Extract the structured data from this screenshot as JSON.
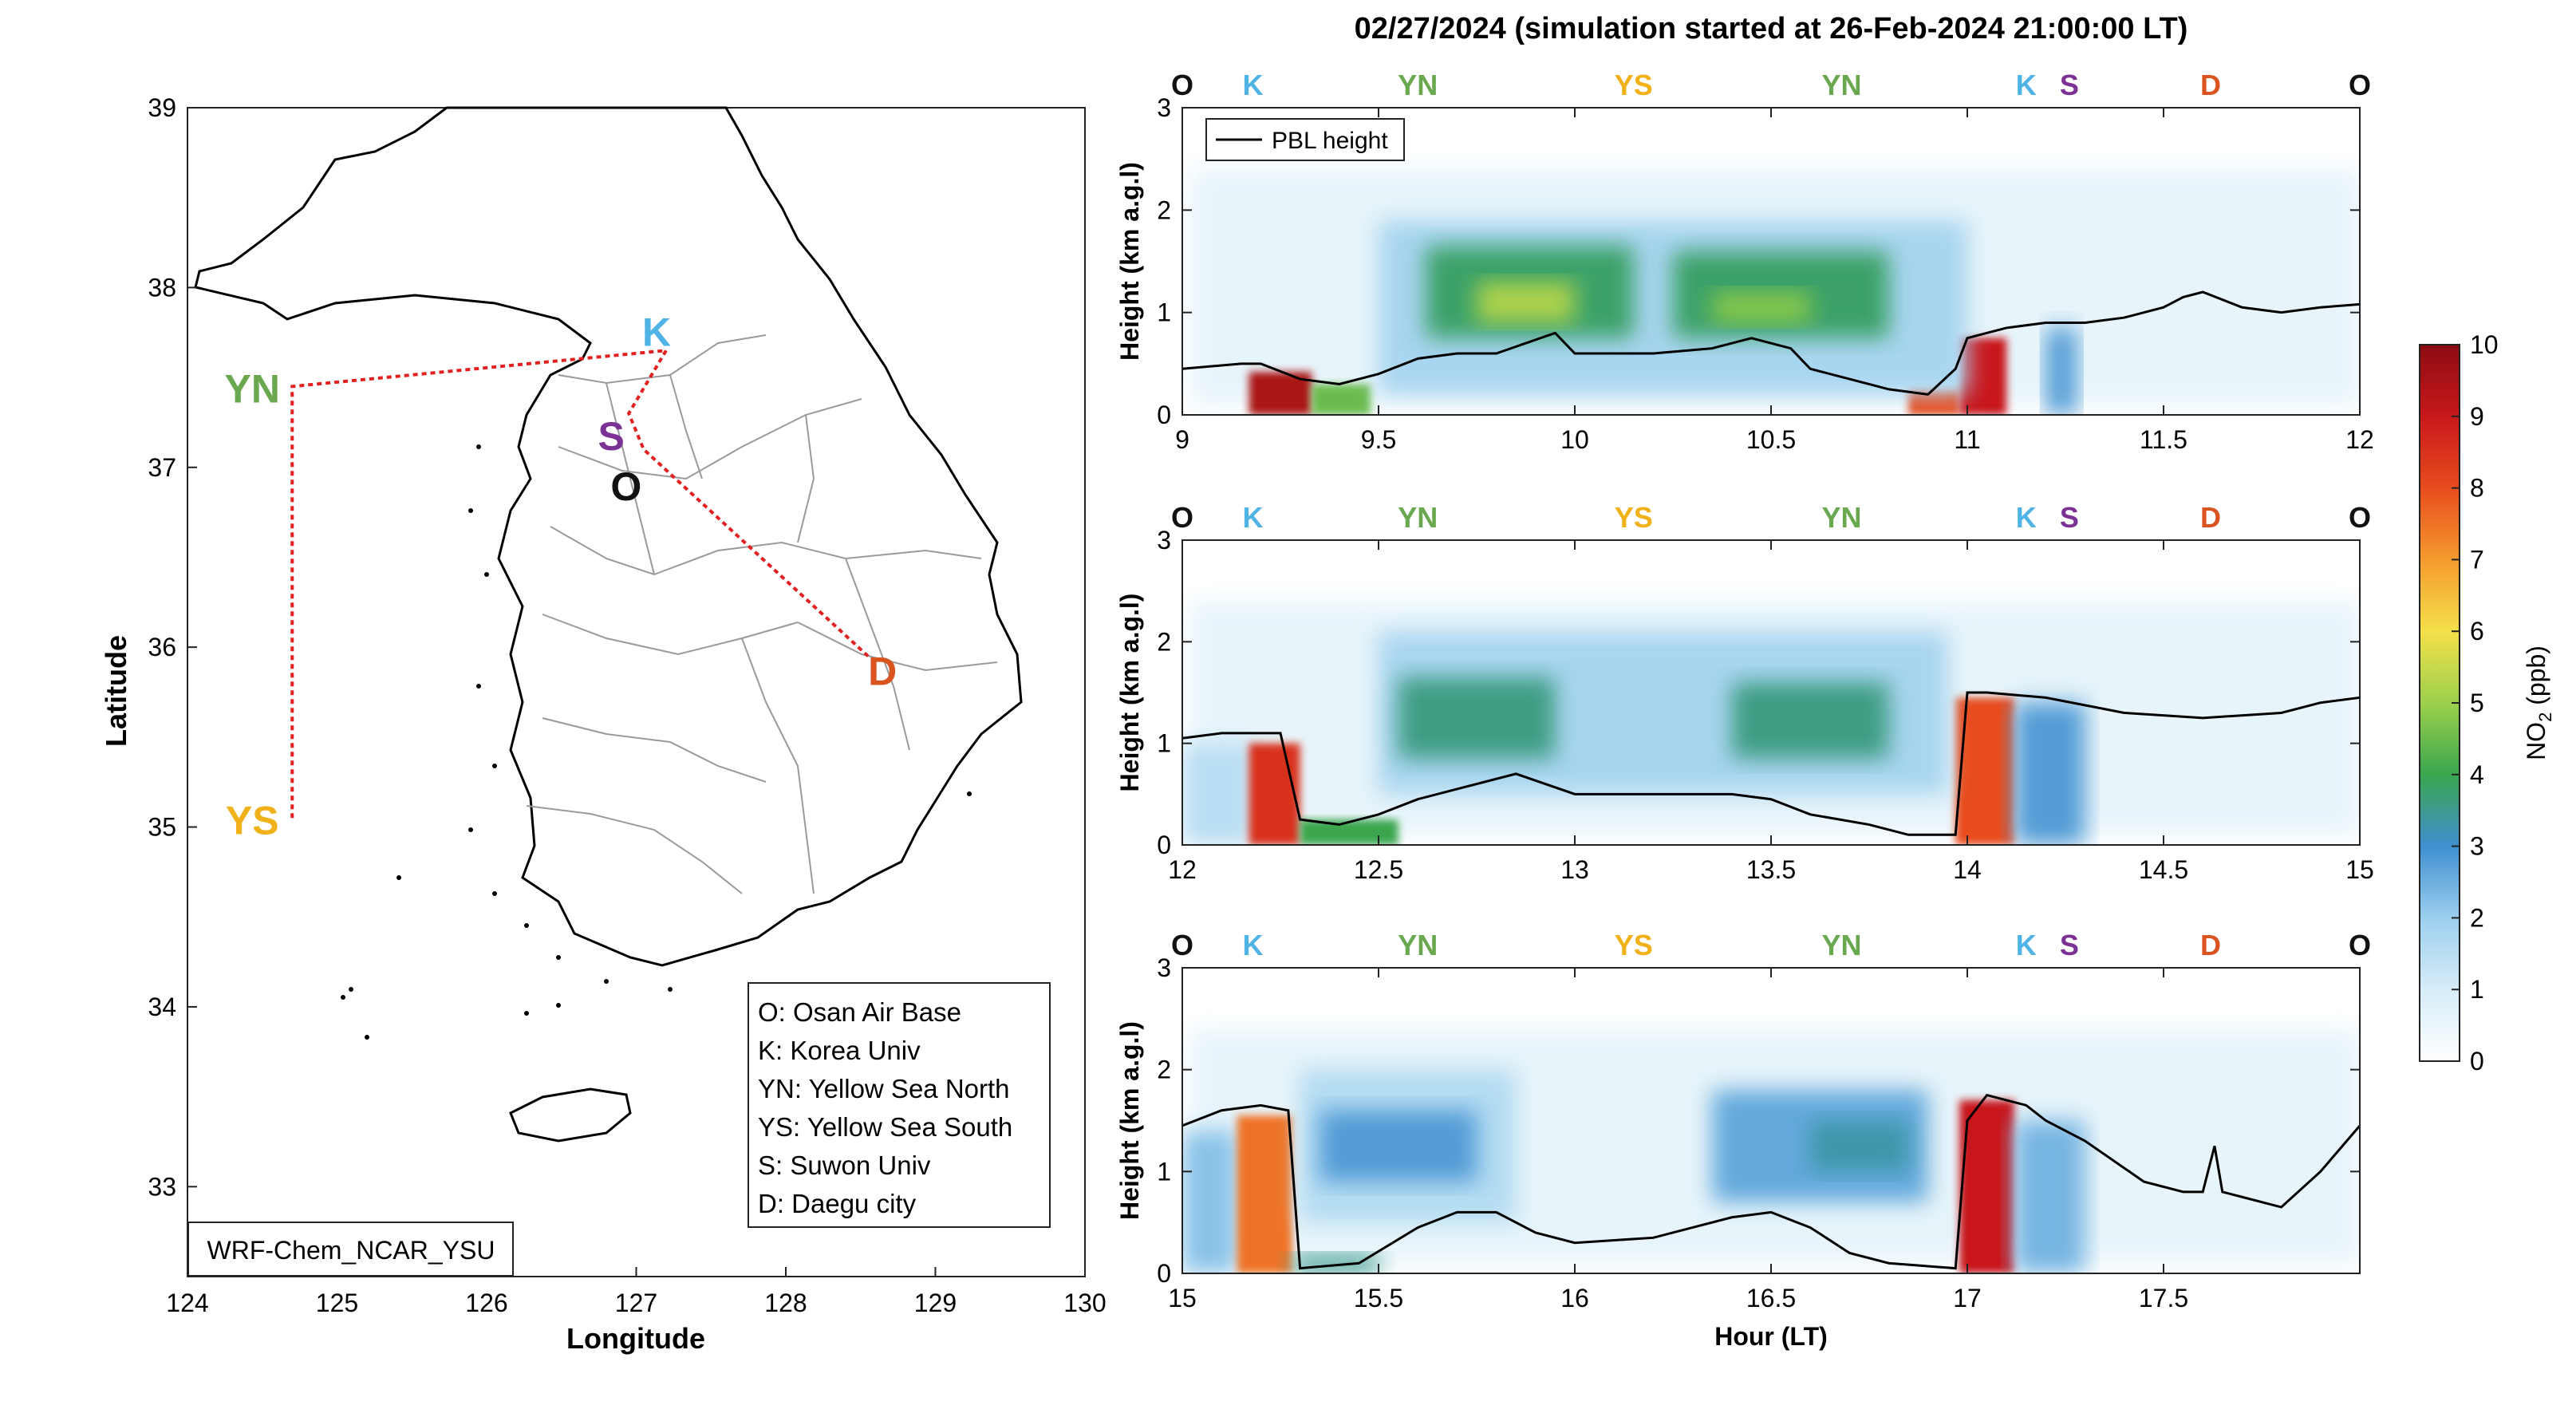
{
  "title": "02/27/2024 (simulation started at 26-Feb-2024 21:00:00 LT)",
  "map": {
    "xlabel": "Longitude",
    "ylabel": "Latitude",
    "x_ticks": [
      "124",
      "125",
      "126",
      "127",
      "128",
      "129",
      "130"
    ],
    "y_ticks": [
      "33",
      "34",
      "35",
      "36",
      "37",
      "38",
      "39"
    ],
    "xlim": [
      124,
      130
    ],
    "ylim": [
      32.5,
      39
    ],
    "model_label": "WRF-Chem_NCAR_YSU",
    "track_color": "#e32020",
    "stations": [
      {
        "code": "YN",
        "lon": 124.7,
        "lat": 37.45,
        "color": "#6aa84f"
      },
      {
        "code": "YS",
        "lon": 124.7,
        "lat": 35.05,
        "color": "#f1b11a"
      },
      {
        "code": "K",
        "lon": 127.2,
        "lat": 37.65,
        "color": "#4fb3e6"
      },
      {
        "code": "S",
        "lon": 126.95,
        "lat": 37.3,
        "color": "#7b3294"
      },
      {
        "code": "O",
        "lon": 127.05,
        "lat": 37.1,
        "color": "#111111"
      },
      {
        "code": "D",
        "lon": 128.55,
        "lat": 35.95,
        "color": "#d9541e"
      }
    ],
    "legend": [
      "O: Osan Air Base",
      "K: Korea Univ",
      "YN: Yellow Sea North",
      "YS: Yellow Sea South",
      "S: Suwon Univ",
      "D: Daegu city"
    ]
  },
  "chart_data": [
    {
      "type": "heatmap",
      "variable": "NO2 (ppb)",
      "ylabel": "Height (km a.g.l)",
      "xlim": [
        9,
        12
      ],
      "ylim": [
        0,
        3
      ],
      "x_ticks": [
        "9",
        "9.5",
        "10",
        "10.5",
        "11",
        "11.5",
        "12"
      ],
      "y_ticks": [
        "0",
        "1",
        "2",
        "3"
      ],
      "legend": [
        "PBL height"
      ],
      "top_labels": [
        {
          "code": "O",
          "x": 9.0
        },
        {
          "code": "K",
          "x": 9.18
        },
        {
          "code": "YN",
          "x": 9.6
        },
        {
          "code": "YS",
          "x": 10.15
        },
        {
          "code": "YN",
          "x": 10.68
        },
        {
          "code": "K",
          "x": 11.15
        },
        {
          "code": "S",
          "x": 11.26
        },
        {
          "code": "D",
          "x": 11.62
        },
        {
          "code": "O",
          "x": 12.0
        }
      ],
      "pbl": {
        "x": [
          9.0,
          9.15,
          9.2,
          9.3,
          9.4,
          9.5,
          9.6,
          9.7,
          9.8,
          9.95,
          10.0,
          10.2,
          10.35,
          10.45,
          10.55,
          10.6,
          10.7,
          10.8,
          10.9,
          10.97,
          11.0,
          11.05,
          11.1,
          11.2,
          11.3,
          11.4,
          11.5,
          11.55,
          11.6,
          11.7,
          11.8,
          11.9,
          12.0
        ],
        "y": [
          0.45,
          0.5,
          0.5,
          0.35,
          0.3,
          0.4,
          0.55,
          0.6,
          0.6,
          0.8,
          0.6,
          0.6,
          0.65,
          0.75,
          0.65,
          0.45,
          0.35,
          0.25,
          0.2,
          0.45,
          0.75,
          0.8,
          0.85,
          0.9,
          0.9,
          0.95,
          1.05,
          1.15,
          1.2,
          1.05,
          1.0,
          1.05,
          1.08
        ]
      },
      "blobs": [
        {
          "x0": 9.17,
          "x1": 9.33,
          "y0": 0.0,
          "y1": 0.42,
          "v": 9.5
        },
        {
          "x0": 9.33,
          "x1": 9.48,
          "y0": 0.0,
          "y1": 0.3,
          "v": 4.5
        },
        {
          "x0": 10.85,
          "x1": 10.98,
          "y0": 0.0,
          "y1": 0.25,
          "v": 8.0
        },
        {
          "x0": 10.98,
          "x1": 11.1,
          "y0": 0.0,
          "y1": 0.75,
          "v": 9.0
        },
        {
          "x0": 9.5,
          "x1": 11.0,
          "y0": 0.2,
          "y1": 1.9,
          "v": 1.8
        },
        {
          "x0": 9.62,
          "x1": 10.15,
          "y0": 0.75,
          "y1": 1.65,
          "v": 3.8
        },
        {
          "x0": 9.75,
          "x1": 10.0,
          "y0": 0.9,
          "y1": 1.3,
          "v": 5.2
        },
        {
          "x0": 10.25,
          "x1": 10.8,
          "y0": 0.75,
          "y1": 1.6,
          "v": 3.8
        },
        {
          "x0": 10.35,
          "x1": 10.6,
          "y0": 0.9,
          "y1": 1.2,
          "v": 4.8
        },
        {
          "x0": 11.2,
          "x1": 11.28,
          "y0": 0.0,
          "y1": 0.85,
          "v": 2.8
        }
      ]
    },
    {
      "type": "heatmap",
      "variable": "NO2 (ppb)",
      "ylabel": "Height (km a.g.l)",
      "xlim": [
        12,
        15
      ],
      "ylim": [
        0,
        3
      ],
      "x_ticks": [
        "12",
        "12.5",
        "13",
        "13.5",
        "14",
        "14.5",
        "15"
      ],
      "y_ticks": [
        "0",
        "1",
        "2",
        "3"
      ],
      "top_labels": [
        {
          "code": "O",
          "x": 12.0
        },
        {
          "code": "K",
          "x": 12.18
        },
        {
          "code": "YN",
          "x": 12.6
        },
        {
          "code": "YS",
          "x": 13.15
        },
        {
          "code": "YN",
          "x": 13.68
        },
        {
          "code": "K",
          "x": 14.15
        },
        {
          "code": "S",
          "x": 14.26
        },
        {
          "code": "D",
          "x": 14.62
        },
        {
          "code": "O",
          "x": 15.0
        }
      ],
      "pbl": {
        "x": [
          12.0,
          12.1,
          12.25,
          12.3,
          12.4,
          12.5,
          12.6,
          12.7,
          12.85,
          13.0,
          13.2,
          13.4,
          13.5,
          13.6,
          13.75,
          13.85,
          13.97,
          14.0,
          14.05,
          14.2,
          14.4,
          14.6,
          14.8,
          14.9,
          15.0
        ],
        "y": [
          1.05,
          1.1,
          1.1,
          0.25,
          0.2,
          0.3,
          0.45,
          0.55,
          0.7,
          0.5,
          0.5,
          0.5,
          0.45,
          0.3,
          0.2,
          0.1,
          0.1,
          1.5,
          1.5,
          1.45,
          1.3,
          1.25,
          1.3,
          1.4,
          1.45
        ]
      },
      "blobs": [
        {
          "x0": 12.0,
          "x1": 12.18,
          "y0": 0.0,
          "y1": 1.0,
          "v": 1.5
        },
        {
          "x0": 12.17,
          "x1": 12.3,
          "y0": 0.0,
          "y1": 1.0,
          "v": 8.5
        },
        {
          "x0": 12.3,
          "x1": 12.55,
          "y0": 0.0,
          "y1": 0.25,
          "v": 4.0
        },
        {
          "x0": 13.97,
          "x1": 14.12,
          "y0": 0.0,
          "y1": 1.45,
          "v": 8.0
        },
        {
          "x0": 12.5,
          "x1": 13.95,
          "y0": 0.5,
          "y1": 2.1,
          "v": 1.8
        },
        {
          "x0": 12.55,
          "x1": 12.95,
          "y0": 0.85,
          "y1": 1.65,
          "v": 3.6
        },
        {
          "x0": 13.4,
          "x1": 13.8,
          "y0": 0.85,
          "y1": 1.6,
          "v": 3.6
        },
        {
          "x0": 14.12,
          "x1": 14.3,
          "y0": 0.0,
          "y1": 1.4,
          "v": 2.8
        }
      ]
    },
    {
      "type": "heatmap",
      "variable": "NO2 (ppb)",
      "ylabel": "Height (km a.g.l)",
      "xlabel": "Hour (LT)",
      "xlim": [
        15,
        18
      ],
      "ylim": [
        0,
        3
      ],
      "x_ticks": [
        "15",
        "15.5",
        "16",
        "16.5",
        "17",
        "17.5"
      ],
      "y_ticks": [
        "0",
        "1",
        "2",
        "3"
      ],
      "top_labels": [
        {
          "code": "O",
          "x": 15.0
        },
        {
          "code": "K",
          "x": 15.18
        },
        {
          "code": "YN",
          "x": 15.6
        },
        {
          "code": "YS",
          "x": 16.15
        },
        {
          "code": "YN",
          "x": 16.68
        },
        {
          "code": "K",
          "x": 17.15
        },
        {
          "code": "S",
          "x": 17.26
        },
        {
          "code": "D",
          "x": 17.62
        },
        {
          "code": "O",
          "x": 18.0
        }
      ],
      "pbl": {
        "x": [
          15.0,
          15.1,
          15.2,
          15.27,
          15.3,
          15.45,
          15.6,
          15.7,
          15.8,
          15.9,
          16.0,
          16.2,
          16.4,
          16.5,
          16.6,
          16.7,
          16.8,
          16.97,
          17.0,
          17.05,
          17.15,
          17.2,
          17.3,
          17.45,
          17.55,
          17.6,
          17.63,
          17.65,
          17.7,
          17.8,
          17.9,
          18.0
        ],
        "y": [
          1.45,
          1.6,
          1.65,
          1.6,
          0.05,
          0.1,
          0.45,
          0.6,
          0.6,
          0.4,
          0.3,
          0.35,
          0.55,
          0.6,
          0.45,
          0.2,
          0.1,
          0.05,
          1.5,
          1.75,
          1.65,
          1.5,
          1.3,
          0.9,
          0.8,
          0.8,
          1.25,
          0.8,
          0.75,
          0.65,
          1.0,
          1.45
        ]
      },
      "blobs": [
        {
          "x0": 15.0,
          "x1": 15.14,
          "y0": 0.0,
          "y1": 1.4,
          "v": 2.2
        },
        {
          "x0": 15.14,
          "x1": 15.28,
          "y0": 0.0,
          "y1": 1.55,
          "v": 7.5
        },
        {
          "x0": 15.28,
          "x1": 15.5,
          "y0": 0.0,
          "y1": 0.18,
          "v": 3.5
        },
        {
          "x0": 16.98,
          "x1": 17.12,
          "y0": 0.0,
          "y1": 1.7,
          "v": 9.0
        },
        {
          "x0": 15.3,
          "x1": 15.85,
          "y0": 0.5,
          "y1": 2.0,
          "v": 1.6
        },
        {
          "x0": 15.35,
          "x1": 15.75,
          "y0": 0.9,
          "y1": 1.6,
          "v": 2.8
        },
        {
          "x0": 16.35,
          "x1": 16.9,
          "y0": 0.7,
          "y1": 1.8,
          "v": 2.6
        },
        {
          "x0": 16.6,
          "x1": 16.85,
          "y0": 1.0,
          "y1": 1.5,
          "v": 3.3
        },
        {
          "x0": 17.12,
          "x1": 17.3,
          "y0": 0.0,
          "y1": 1.5,
          "v": 2.4
        }
      ]
    }
  ],
  "colorbar": {
    "label_main": "NO",
    "label_sub": "2",
    "label_unit": " (ppb)",
    "ticks": [
      "0",
      "1",
      "2",
      "3",
      "4",
      "5",
      "6",
      "7",
      "8",
      "9",
      "10"
    ],
    "range": [
      0,
      10
    ]
  }
}
